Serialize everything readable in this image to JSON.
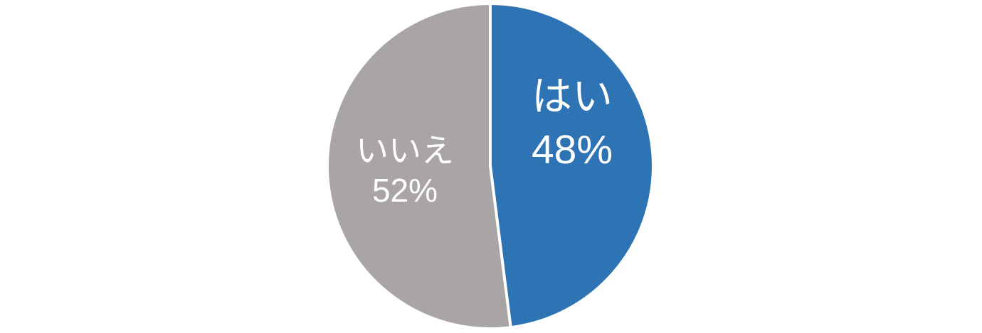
{
  "chart_data": {
    "type": "pie",
    "title": "",
    "slices": [
      {
        "label": "はい",
        "value": 48,
        "display": "48%",
        "color": "#2e74b5"
      },
      {
        "label": "いいえ",
        "value": 52,
        "display": "52%",
        "color": "#a8a5a4"
      }
    ],
    "start_angle_deg": 0,
    "direction": "clockwise",
    "separator_color": "#ffffff",
    "label_color": "#ffffff",
    "labels_inside": true,
    "legend": "none",
    "background": "#ffffff"
  }
}
